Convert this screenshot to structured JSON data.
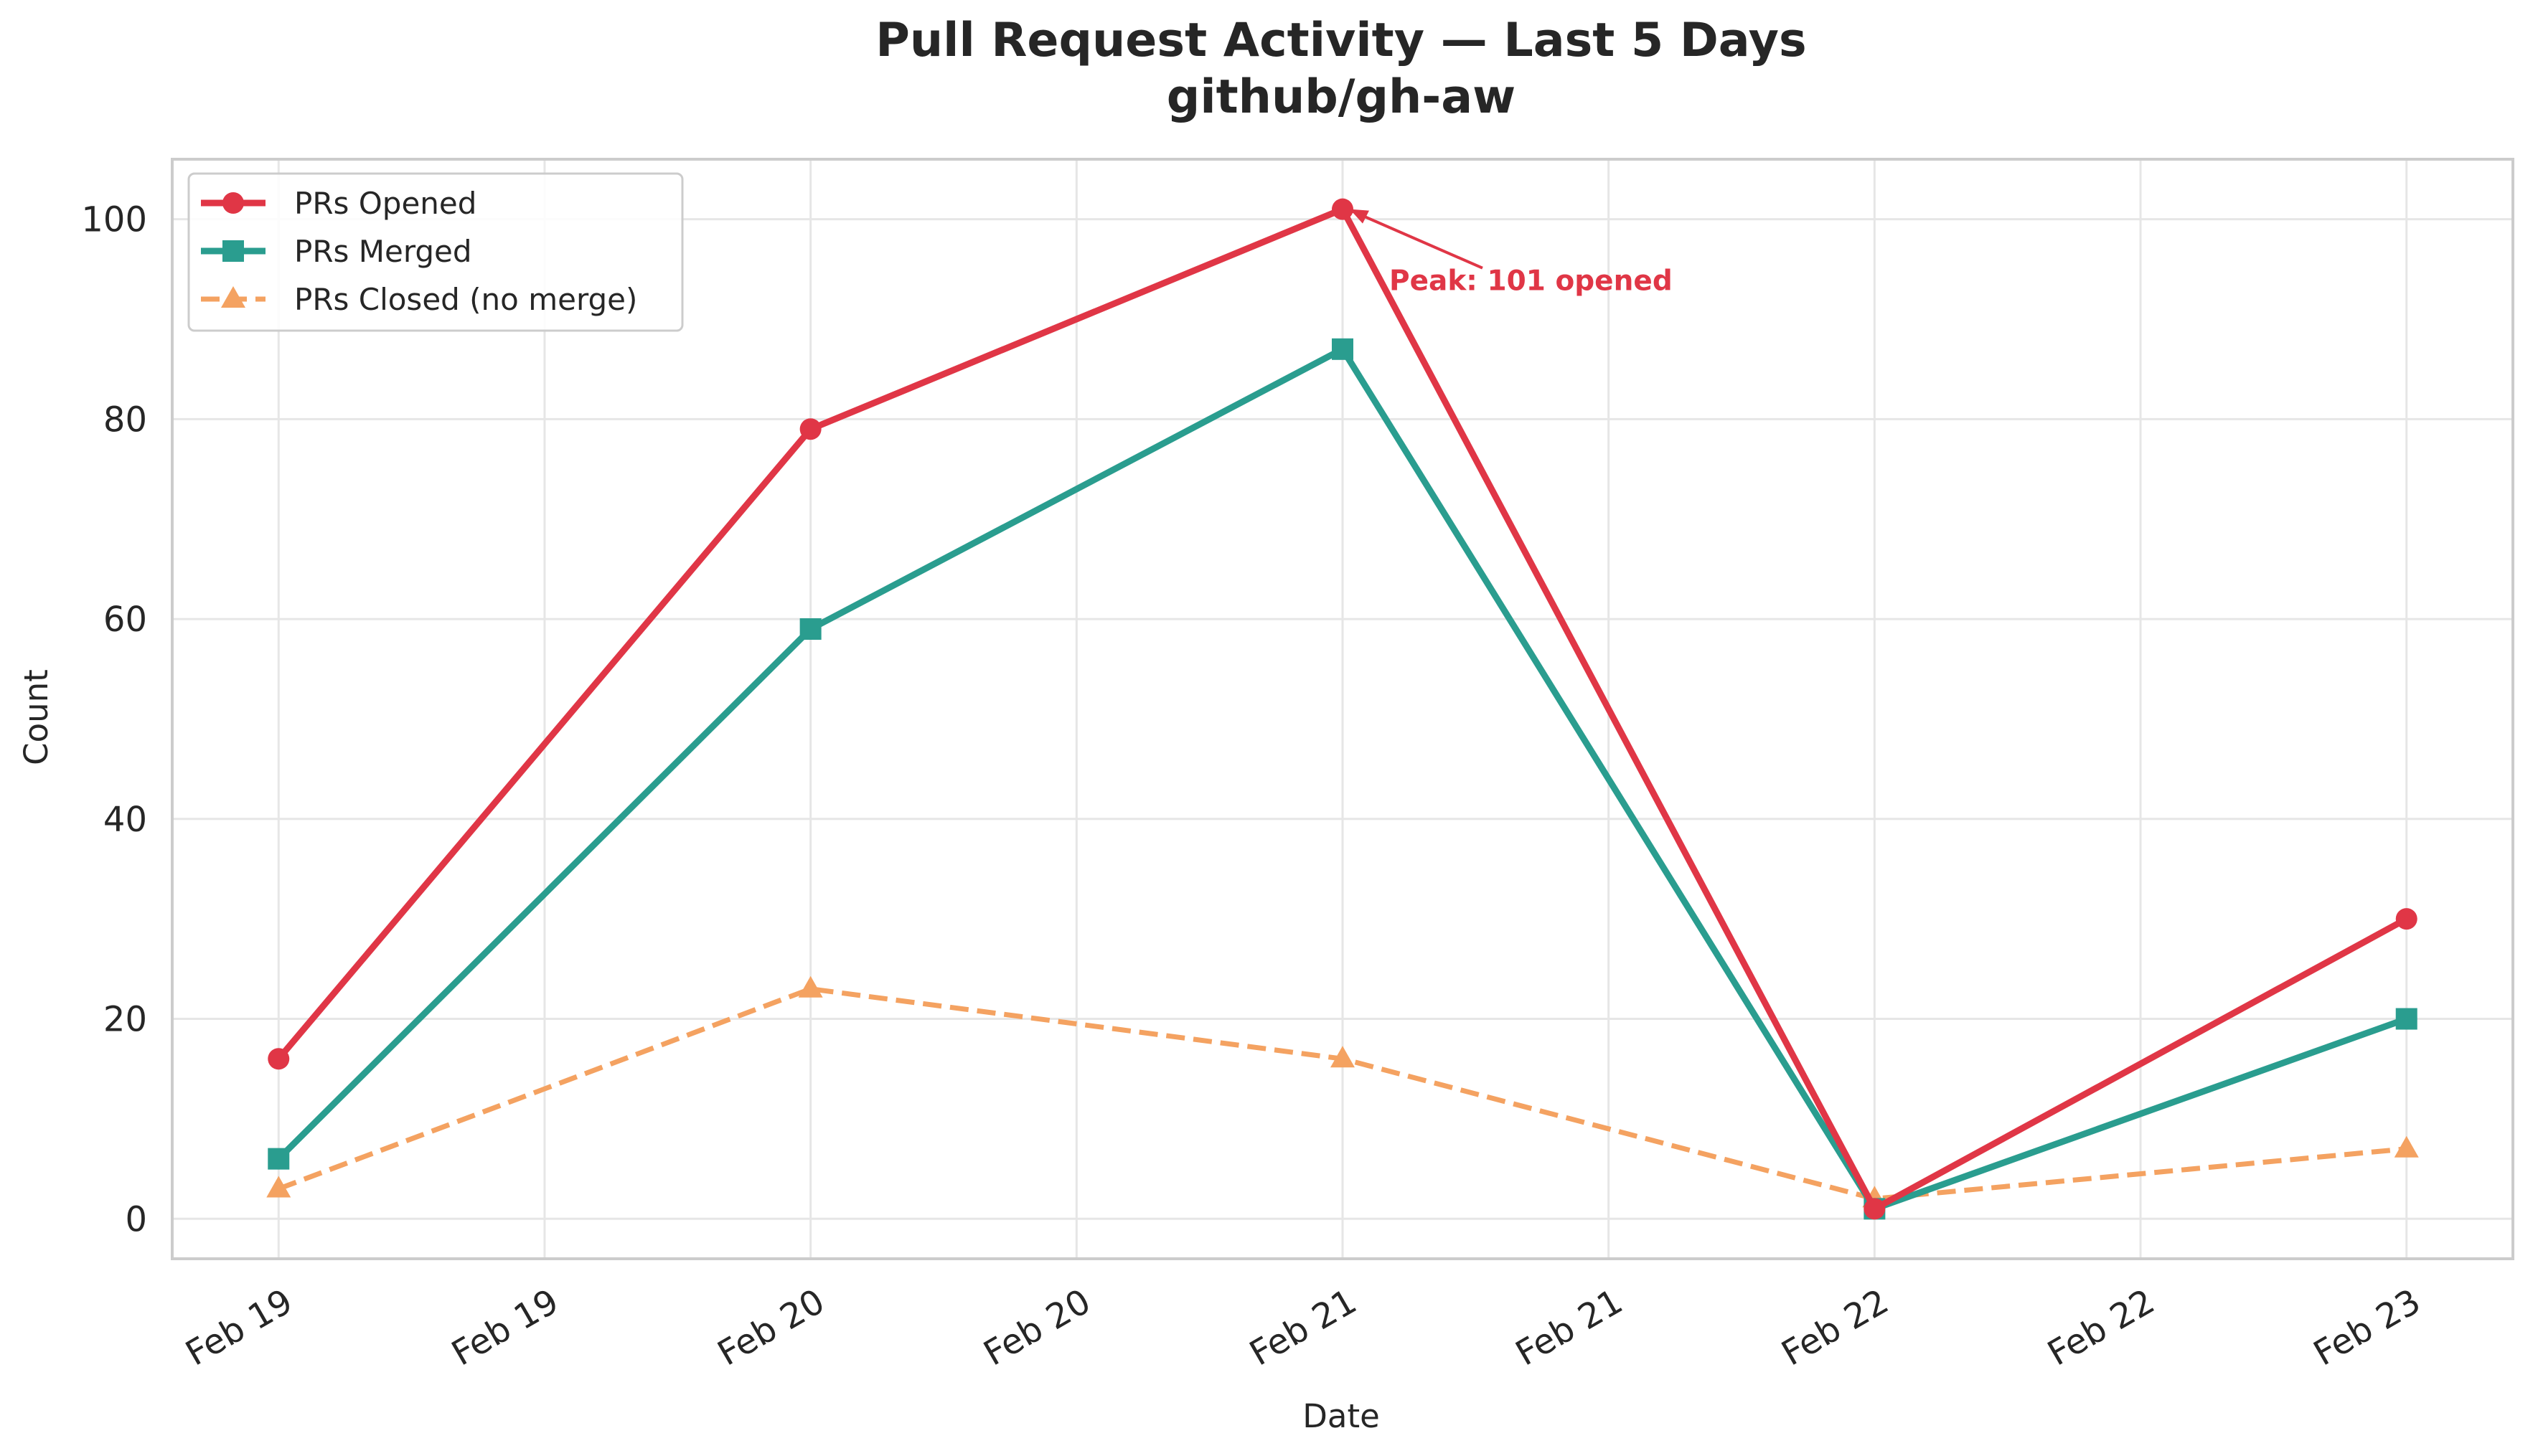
{
  "chart_data": {
    "type": "line",
    "title": "Pull Request Activity — Last 5 Days",
    "subtitle": "github/gh-aw",
    "xlabel": "Date",
    "ylabel": "Count",
    "x": [
      "2025-02-19",
      "2025-02-20",
      "2025-02-21",
      "2025-02-22",
      "2025-02-23"
    ],
    "x_tick_labels": [
      "Feb 19",
      "Feb 19",
      "Feb 20",
      "Feb 20",
      "Feb 21",
      "Feb 21",
      "Feb 22",
      "Feb 22",
      "Feb 23"
    ],
    "ylim": [
      -4,
      106
    ],
    "y_ticks": [
      0,
      20,
      40,
      60,
      80,
      100
    ],
    "grid": true,
    "legend_position": "top-left",
    "series": [
      {
        "name": "PRs Opened",
        "values": [
          16,
          79,
          101,
          1,
          30
        ],
        "color": "#e03646",
        "marker": "circle",
        "line_style": "solid"
      },
      {
        "name": "PRs Merged",
        "values": [
          6,
          59,
          87,
          1,
          20
        ],
        "color": "#2a9d8f",
        "marker": "square",
        "line_style": "solid"
      },
      {
        "name": "PRs Closed (no merge)",
        "values": [
          3,
          23,
          16,
          2,
          7
        ],
        "color": "#f4a261",
        "marker": "triangle",
        "line_style": "dashed"
      }
    ],
    "annotations": [
      {
        "text": "Peak: 101 opened",
        "x": "2025-02-21",
        "y": 101,
        "color": "#e03646",
        "arrow": true
      }
    ]
  }
}
